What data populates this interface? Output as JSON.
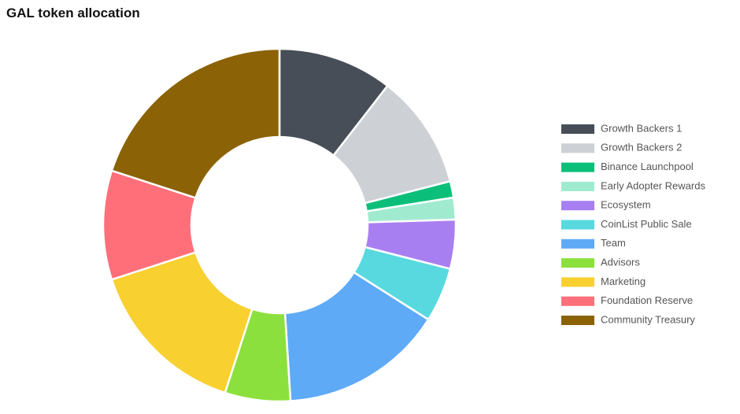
{
  "chart_data": {
    "type": "pie",
    "title": "GAL token allocation",
    "categories": [
      "Growth Backers 1",
      "Growth Backers 2",
      "Binance Launchpool",
      "Early Adopter Rewards",
      "Ecosystem",
      "CoinList Public Sale",
      "Team",
      "Advisors",
      "Marketing",
      "Foundation Reserve",
      "Community Treasury"
    ],
    "values": [
      10.5,
      10.5,
      1.5,
      2,
      4.5,
      5,
      15,
      6,
      15,
      10,
      20
    ],
    "colors": [
      "#474e57",
      "#cdd0d4",
      "#0bbf7a",
      "#a0ebd0",
      "#a87ff0",
      "#57d9df",
      "#5eaaf7",
      "#8ce03e",
      "#f8d030",
      "#ff6f7a",
      "#8b6205"
    ],
    "donut": true,
    "legend": "right"
  }
}
